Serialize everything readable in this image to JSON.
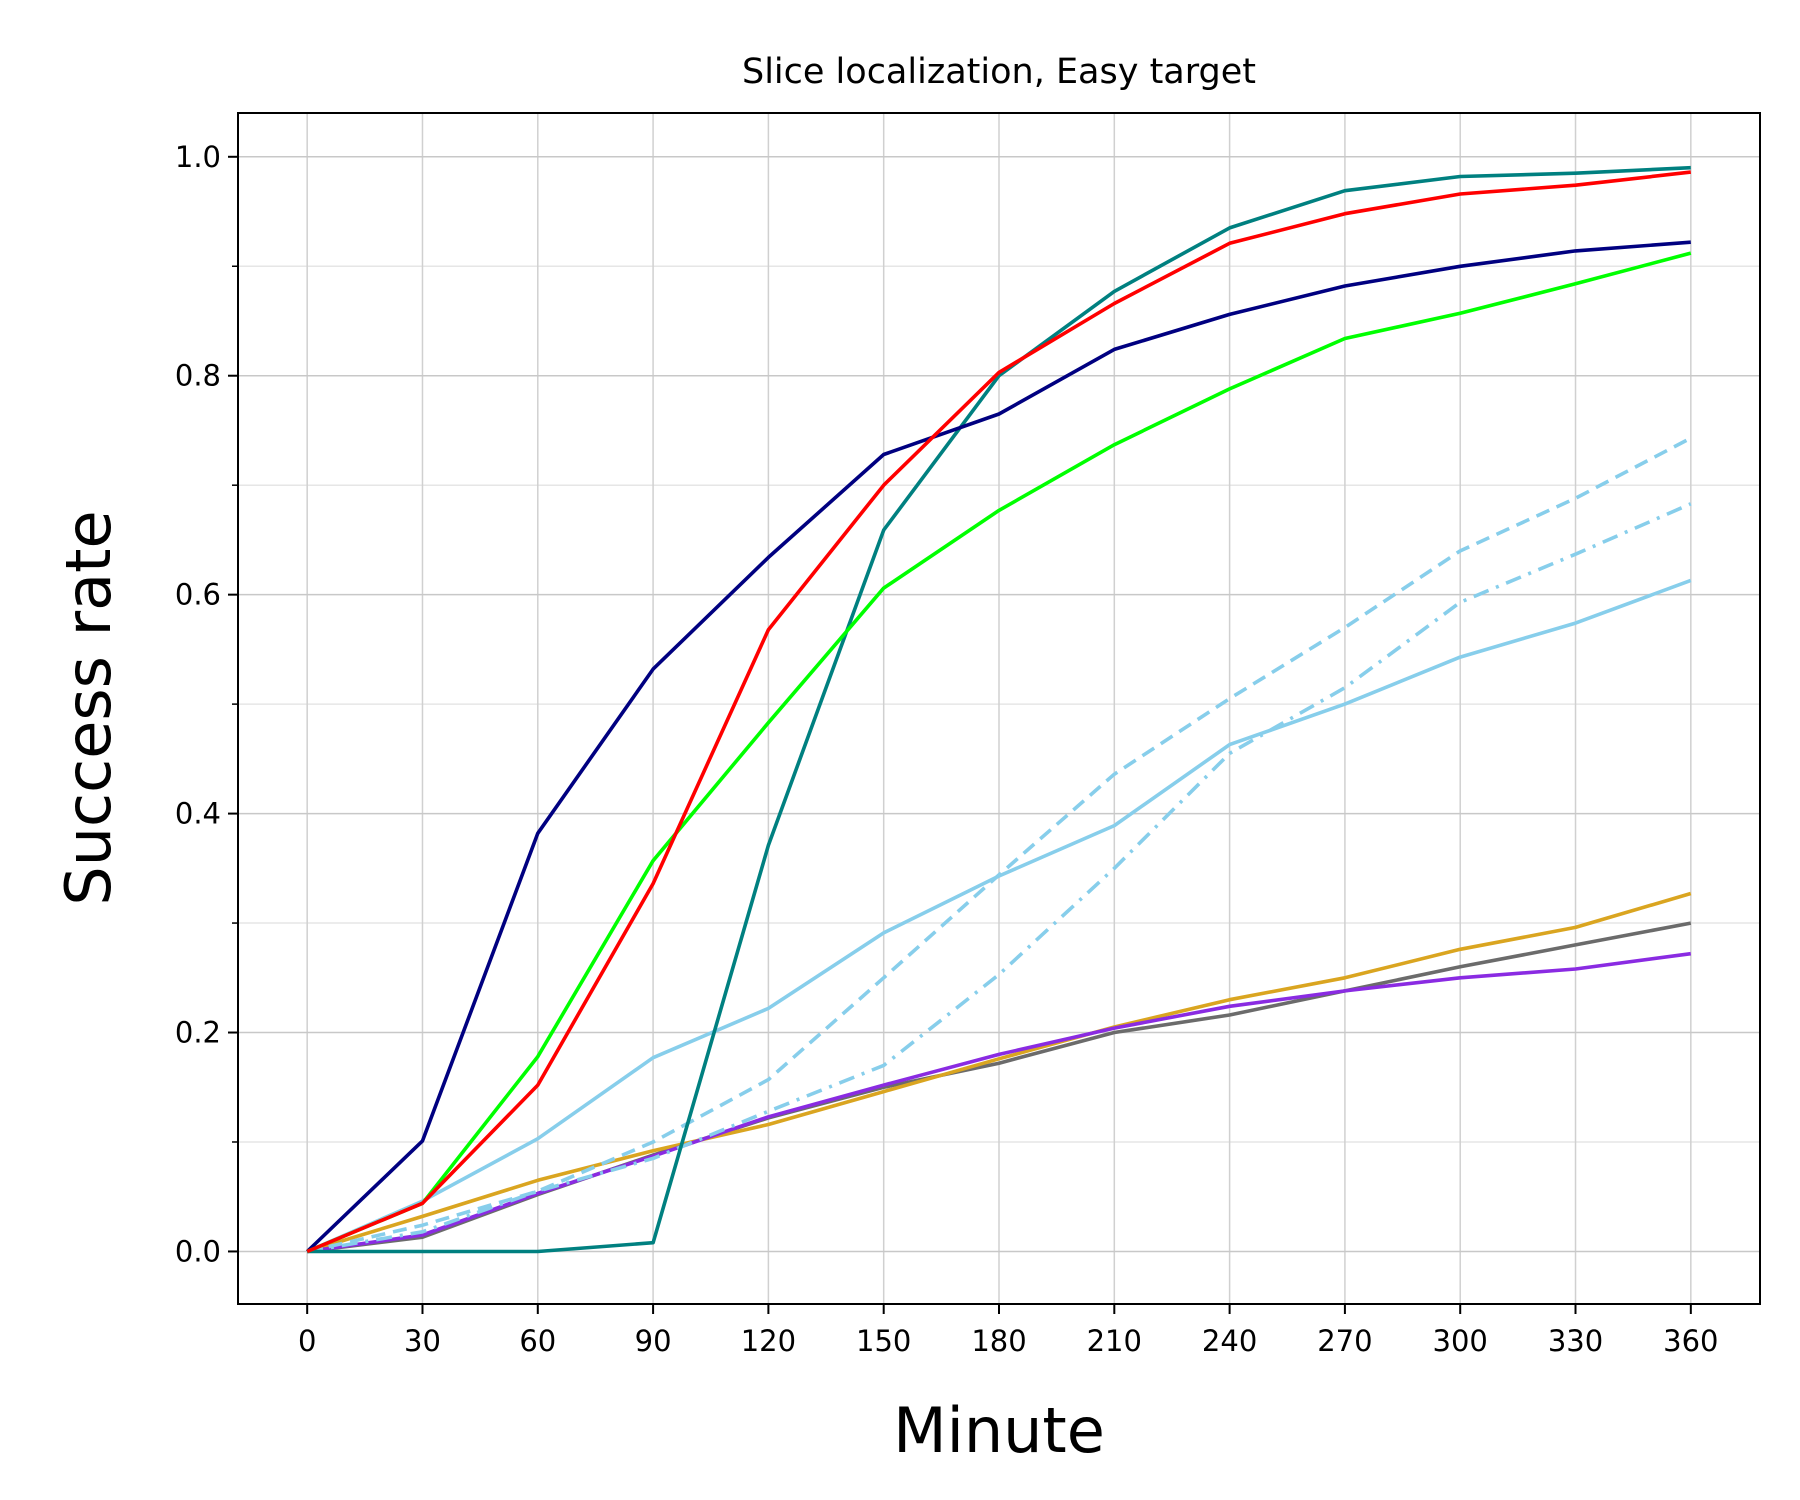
{
  "chart_data": {
    "type": "line",
    "title": "Slice localization, Easy target",
    "xlabel": "Minute",
    "ylabel": "Success rate",
    "x": [
      0,
      30,
      60,
      90,
      120,
      150,
      180,
      210,
      240,
      270,
      300,
      330,
      360
    ],
    "xticks": [
      "0",
      "30",
      "60",
      "90",
      "120",
      "150",
      "180",
      "210",
      "240",
      "270",
      "300",
      "330",
      "360"
    ],
    "yticks": [
      "0.0",
      "0.2",
      "0.4",
      "0.6",
      "0.8",
      "1.0"
    ],
    "xlim": [
      -18,
      378
    ],
    "ylim": [
      -0.048,
      1.04
    ],
    "grid": true,
    "series": [
      {
        "color": "#6b6b6b",
        "dash": "solid",
        "values": [
          0.0,
          0.013,
          0.052,
          0.088,
          0.122,
          0.15,
          0.172,
          0.2,
          0.216,
          0.238,
          0.26,
          0.28,
          0.3
        ]
      },
      {
        "color": "#daa520",
        "dash": "solid",
        "values": [
          0.0,
          0.032,
          0.065,
          0.092,
          0.116,
          0.146,
          0.176,
          0.205,
          0.23,
          0.25,
          0.276,
          0.296,
          0.327
        ]
      },
      {
        "color": "#8a2be2",
        "dash": "solid",
        "values": [
          0.0,
          0.015,
          0.053,
          0.087,
          0.123,
          0.152,
          0.18,
          0.204,
          0.224,
          0.238,
          0.25,
          0.258,
          0.272
        ]
      },
      {
        "color": "#87ceeb",
        "dash": "dashdot",
        "values": [
          0.0,
          0.018,
          0.055,
          0.085,
          0.128,
          0.17,
          0.253,
          0.35,
          0.455,
          0.515,
          0.593,
          0.637,
          0.683
        ]
      },
      {
        "color": "#87ceeb",
        "dash": "dashed",
        "values": [
          0.0,
          0.024,
          0.055,
          0.1,
          0.157,
          0.25,
          0.344,
          0.436,
          0.505,
          0.57,
          0.64,
          0.688,
          0.743
        ]
      },
      {
        "color": "#87ceeb",
        "dash": "solid",
        "values": [
          0.0,
          0.046,
          0.103,
          0.177,
          0.222,
          0.291,
          0.343,
          0.389,
          0.463,
          0.5,
          0.543,
          0.574,
          0.613
        ]
      },
      {
        "color": "#008080",
        "dash": "solid",
        "values": [
          0.0,
          0.0,
          0.0,
          0.008,
          0.371,
          0.659,
          0.8,
          0.877,
          0.935,
          0.969,
          0.982,
          0.985,
          0.99
        ]
      },
      {
        "color": "#000080",
        "dash": "solid",
        "values": [
          0.0,
          0.101,
          0.382,
          0.532,
          0.634,
          0.728,
          0.765,
          0.824,
          0.856,
          0.882,
          0.9,
          0.914,
          0.922
        ]
      },
      {
        "color": "#00ff00",
        "dash": "solid",
        "values": [
          0.0,
          0.044,
          0.178,
          0.357,
          0.483,
          0.606,
          0.677,
          0.737,
          0.788,
          0.834,
          0.857,
          0.884,
          0.912
        ]
      },
      {
        "color": "#ff0000",
        "dash": "solid",
        "values": [
          0.0,
          0.044,
          0.152,
          0.336,
          0.568,
          0.7,
          0.803,
          0.866,
          0.921,
          0.948,
          0.966,
          0.974,
          0.986
        ]
      }
    ]
  }
}
